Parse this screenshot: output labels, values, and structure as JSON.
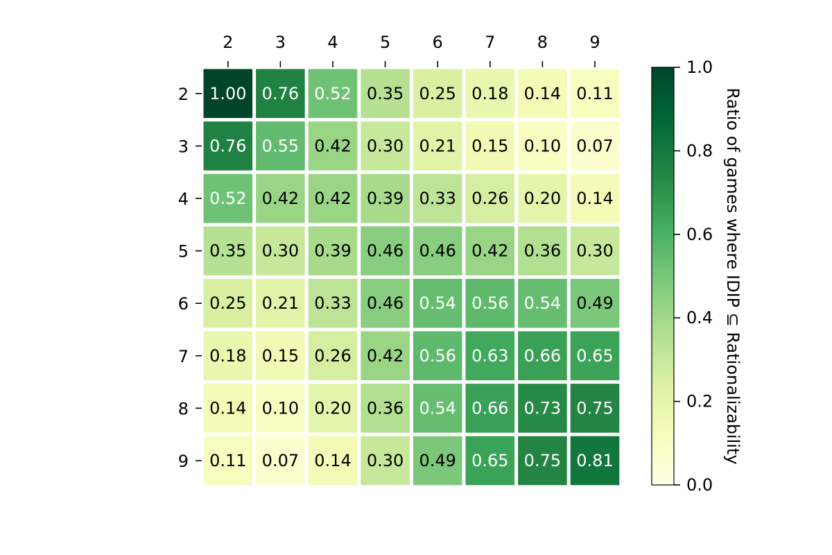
{
  "chart_data": {
    "type": "heatmap",
    "title": "",
    "x_categories": [
      "2",
      "3",
      "4",
      "5",
      "6",
      "7",
      "8",
      "9"
    ],
    "y_categories": [
      "2",
      "3",
      "4",
      "5",
      "6",
      "7",
      "8",
      "9"
    ],
    "x_axis_position": "top",
    "values": [
      [
        1.0,
        0.76,
        0.52,
        0.35,
        0.25,
        0.18,
        0.14,
        0.11
      ],
      [
        0.76,
        0.55,
        0.42,
        0.3,
        0.21,
        0.15,
        0.1,
        0.07
      ],
      [
        0.52,
        0.42,
        0.42,
        0.39,
        0.33,
        0.26,
        0.2,
        0.14
      ],
      [
        0.35,
        0.3,
        0.39,
        0.46,
        0.46,
        0.42,
        0.36,
        0.3
      ],
      [
        0.25,
        0.21,
        0.33,
        0.46,
        0.54,
        0.56,
        0.54,
        0.49
      ],
      [
        0.18,
        0.15,
        0.26,
        0.42,
        0.56,
        0.63,
        0.66,
        0.65
      ],
      [
        0.14,
        0.1,
        0.2,
        0.36,
        0.54,
        0.66,
        0.73,
        0.75
      ],
      [
        0.11,
        0.07,
        0.14,
        0.3,
        0.49,
        0.65,
        0.75,
        0.81
      ]
    ],
    "value_format": "2 decimals",
    "colormap": "YlGn",
    "colorbar": {
      "label": "Ratio of games where IDIP ⊆ Rationalizability",
      "range": [
        0.0,
        1.0
      ],
      "ticks": [
        "0.0",
        "0.2",
        "0.4",
        "0.6",
        "0.8",
        "1.0"
      ],
      "placement": "right"
    },
    "grid": false
  }
}
